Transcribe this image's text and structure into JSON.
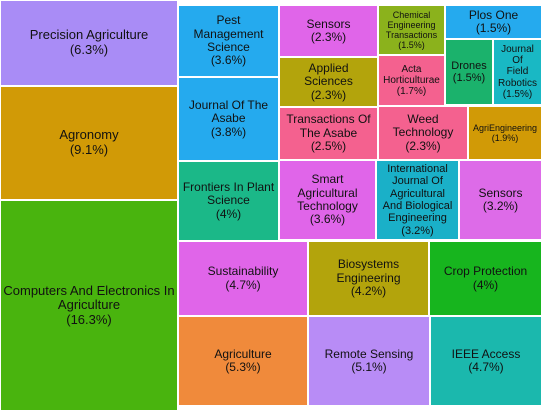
{
  "chart_data": {
    "type": "treemap",
    "title": "",
    "items": [
      {
        "label": "Precision Agriculture",
        "value": 6.3,
        "display": "(6.3%)",
        "color": "#a98cf6"
      },
      {
        "label": "Agronomy",
        "value": 9.1,
        "display": "(9.1%)",
        "color": "#d19a06"
      },
      {
        "label": "Computers And Electronics In Agriculture",
        "value": 16.3,
        "display": "(16.3%)",
        "color": "#49b40e"
      },
      {
        "label": "Pest Management Science",
        "value": 3.6,
        "display": "(3.6%)",
        "color": "#25aaee"
      },
      {
        "label": "Journal Of The Asabe",
        "value": 3.8,
        "display": "(3.8%)",
        "color": "#25aaee"
      },
      {
        "label": "Frontiers In Plant Science",
        "value": 4.0,
        "display": "(4%)",
        "color": "#1bb888"
      },
      {
        "label": "Sensors",
        "value": 2.3,
        "display": "(2.3%)",
        "color": "#e065e9"
      },
      {
        "label": "Applied Sciences",
        "value": 2.3,
        "display": "(2.3%)",
        "color": "#b3a40c"
      },
      {
        "label": "Transactions Of The Asabe",
        "value": 2.5,
        "display": "(2.5%)",
        "color": "#f4618f"
      },
      {
        "label": "Chemical Engineering Transactions",
        "value": 1.5,
        "display": "(1.5%)",
        "color": "#8bb21c"
      },
      {
        "label": "Acta Horticulturae",
        "value": 1.7,
        "display": "(1.7%)",
        "color": "#f4618f"
      },
      {
        "label": "Weed Technology",
        "value": 2.3,
        "display": "(2.3%)",
        "color": "#f4618f"
      },
      {
        "label": "Plos One",
        "value": 1.5,
        "display": "(1.5%)",
        "color": "#25aaee"
      },
      {
        "label": "Drones",
        "value": 1.5,
        "display": "(1.5%)",
        "color": "#1bb26c"
      },
      {
        "label": "Journal Of Field Robotics",
        "value": 1.5,
        "display": "(1.5%)",
        "color": "#19b8c4"
      },
      {
        "label": "AgriEngineering",
        "value": 1.9,
        "display": "(1.9%)",
        "color": "#d19a06"
      },
      {
        "label": "Smart Agricultural Technology",
        "value": 3.6,
        "display": "(3.6%)",
        "color": "#e065e9"
      },
      {
        "label": "International Journal Of Agricultural And Biological Engineering",
        "value": 3.2,
        "display": "(3.2%)",
        "color": "#1ab0c8"
      },
      {
        "label": "Sensors",
        "value": 3.2,
        "display": "(3.2%)",
        "color": "#dd6be8"
      },
      {
        "label": "Sustainability",
        "value": 4.7,
        "display": "(4.7%)",
        "color": "#e065e9"
      },
      {
        "label": "Biosystems Engineering",
        "value": 4.2,
        "display": "(4.2%)",
        "color": "#b3a40c"
      },
      {
        "label": "Crop Protection",
        "value": 4.0,
        "display": "(4%)",
        "color": "#17b51e"
      },
      {
        "label": "Agriculture",
        "value": 5.3,
        "display": "(5.3%)",
        "color": "#f08a3b"
      },
      {
        "label": "Remote Sensing",
        "value": 5.1,
        "display": "(5.1%)",
        "color": "#b88cf6"
      },
      {
        "label": "IEEE Access",
        "value": 4.7,
        "display": "(4.7%)",
        "color": "#1bb8ad"
      }
    ]
  }
}
